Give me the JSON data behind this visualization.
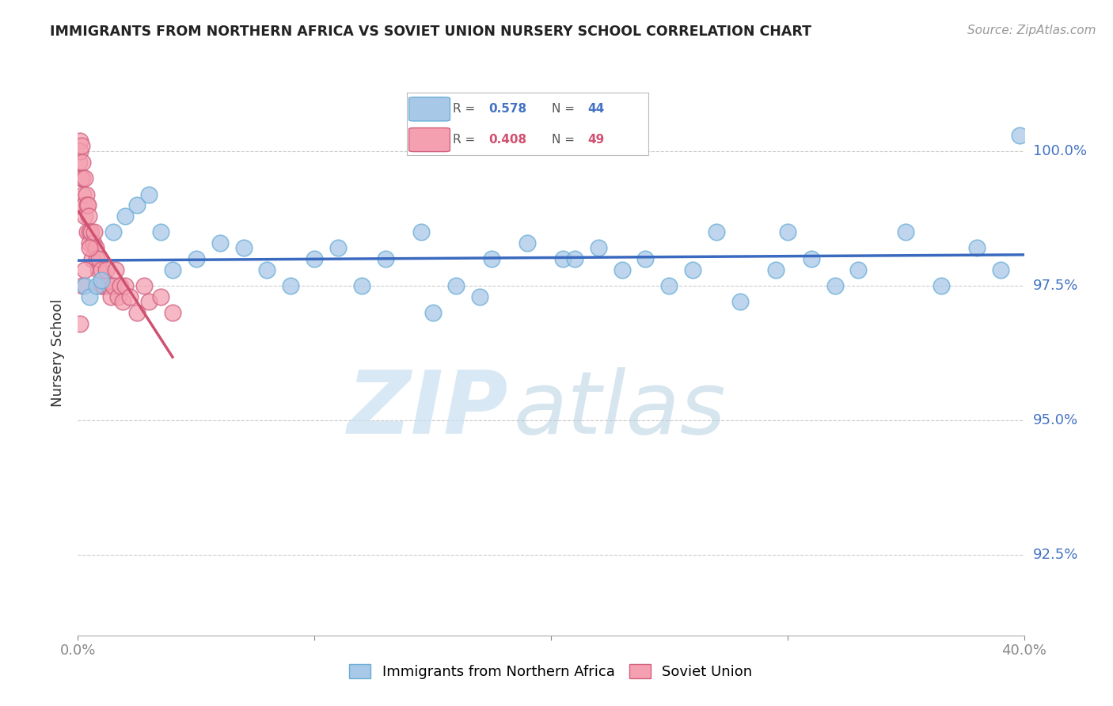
{
  "title": "IMMIGRANTS FROM NORTHERN AFRICA VS SOVIET UNION NURSERY SCHOOL CORRELATION CHART",
  "source": "Source: ZipAtlas.com",
  "xlabel_blue": "Immigrants from Northern Africa",
  "xlabel_pink": "Soviet Union",
  "ylabel": "Nursery School",
  "xlim": [
    0.0,
    40.0
  ],
  "ylim": [
    91.0,
    101.5
  ],
  "yticks": [
    92.5,
    95.0,
    97.5,
    100.0
  ],
  "ytick_labels": [
    "92.5%",
    "95.0%",
    "97.5%",
    "100.0%"
  ],
  "xticks": [
    0.0,
    10.0,
    20.0,
    30.0,
    40.0
  ],
  "xtick_labels": [
    "0.0%",
    "",
    "",
    "",
    "40.0%"
  ],
  "blue_R": 0.578,
  "blue_N": 44,
  "pink_R": 0.408,
  "pink_N": 49,
  "blue_color": "#a8c8e8",
  "blue_edge": "#6aaed6",
  "pink_color": "#f4a0b0",
  "pink_edge": "#d06080",
  "blue_line_color": "#3a6abf",
  "pink_line_color": "#d05070",
  "blue_scatter_x": [
    0.3,
    0.5,
    0.8,
    1.0,
    1.5,
    2.0,
    2.5,
    3.0,
    3.5,
    4.0,
    5.0,
    6.0,
    7.0,
    8.0,
    9.0,
    10.0,
    11.0,
    12.0,
    13.0,
    14.5,
    16.0,
    17.5,
    19.0,
    20.5,
    22.0,
    23.0,
    24.0,
    25.0,
    26.0,
    27.0,
    28.0,
    29.5,
    31.0,
    32.0,
    33.0,
    35.0,
    36.5,
    38.0,
    39.0,
    39.8,
    15.0,
    17.0,
    21.0,
    30.0
  ],
  "blue_scatter_y": [
    97.5,
    97.3,
    97.5,
    97.6,
    98.5,
    98.8,
    99.0,
    99.2,
    98.5,
    97.8,
    98.0,
    98.3,
    98.2,
    97.8,
    97.5,
    98.0,
    98.2,
    97.5,
    98.0,
    98.5,
    97.5,
    98.0,
    98.3,
    98.0,
    98.2,
    97.8,
    98.0,
    97.5,
    97.8,
    98.5,
    97.2,
    97.8,
    98.0,
    97.5,
    97.8,
    98.5,
    97.5,
    98.2,
    97.8,
    100.3,
    97.0,
    97.3,
    98.0,
    98.5
  ],
  "pink_scatter_x": [
    0.05,
    0.08,
    0.1,
    0.12,
    0.15,
    0.18,
    0.2,
    0.22,
    0.25,
    0.28,
    0.3,
    0.35,
    0.38,
    0.4,
    0.42,
    0.45,
    0.48,
    0.5,
    0.55,
    0.6,
    0.65,
    0.7,
    0.75,
    0.8,
    0.85,
    0.9,
    0.95,
    1.0,
    1.05,
    1.1,
    1.2,
    1.3,
    1.4,
    1.5,
    1.6,
    1.7,
    1.8,
    1.9,
    2.0,
    2.2,
    2.5,
    2.8,
    3.0,
    3.5,
    4.0,
    0.1,
    0.2,
    0.3,
    0.5
  ],
  "pink_scatter_y": [
    99.8,
    100.2,
    100.0,
    99.5,
    100.1,
    99.8,
    99.5,
    99.2,
    99.0,
    99.5,
    98.8,
    99.2,
    99.0,
    98.5,
    99.0,
    98.8,
    98.5,
    98.3,
    98.5,
    98.0,
    98.3,
    98.5,
    98.2,
    98.0,
    97.8,
    98.0,
    97.5,
    97.8,
    97.5,
    97.5,
    97.8,
    97.5,
    97.3,
    97.5,
    97.8,
    97.3,
    97.5,
    97.2,
    97.5,
    97.3,
    97.0,
    97.5,
    97.2,
    97.3,
    97.0,
    96.8,
    97.5,
    97.8,
    98.2
  ],
  "background_color": "#ffffff",
  "grid_color": "#cccccc",
  "watermark_zip_color": "#c8dff0",
  "watermark_atlas_color": "#b0cce0"
}
